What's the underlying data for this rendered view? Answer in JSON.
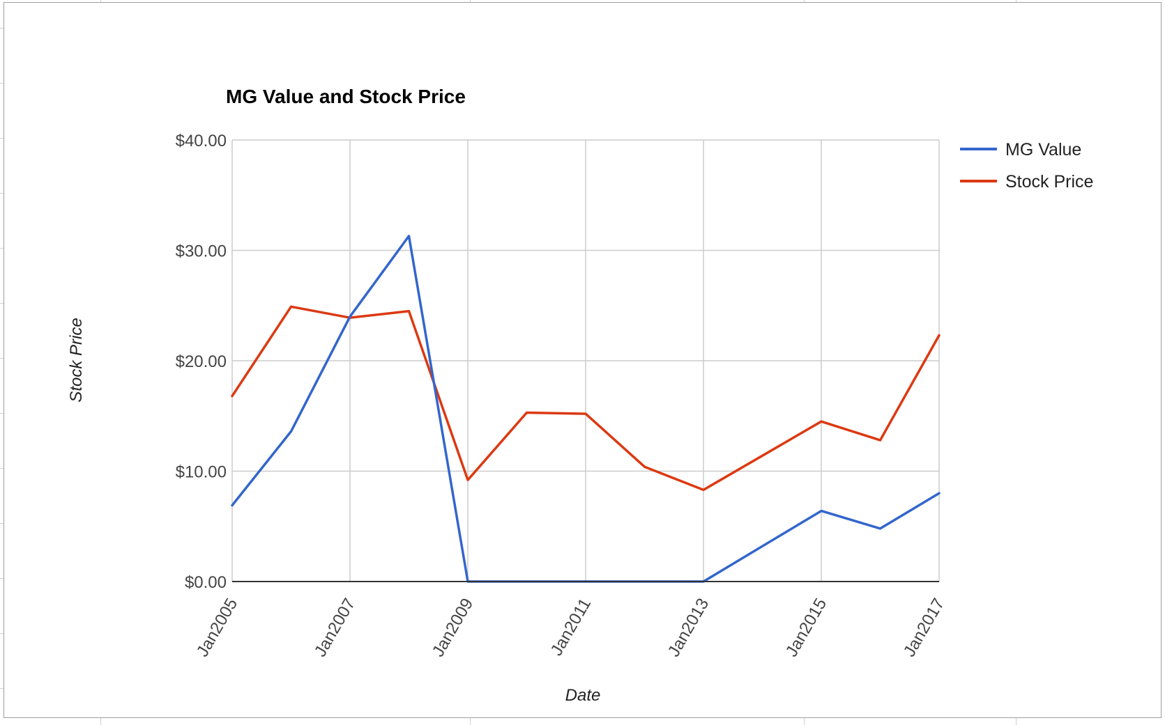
{
  "colors": {
    "mg_value": "#3366cc",
    "stock_price": "#dc3912",
    "gridline": "#cccccc",
    "baseline": "#333333"
  },
  "chart_data": {
    "type": "line",
    "title": "MG Value and Stock Price",
    "xlabel": "Date",
    "ylabel": "Stock Price",
    "x_ticks": [
      "Jan2005",
      "Jan2007",
      "Jan2009",
      "Jan2011",
      "Jan2013",
      "Jan2015",
      "Jan2017"
    ],
    "y_ticks": [
      "$0.00",
      "$10.00",
      "$20.00",
      "$30.00",
      "$40.00"
    ],
    "ylim": [
      0,
      40
    ],
    "xlim": [
      "2005-01",
      "2017-01"
    ],
    "grid": true,
    "legend": "right",
    "series": [
      {
        "name": "MG Value",
        "points": [
          [
            "2005-01",
            6.9
          ],
          [
            "2006-01",
            13.6
          ],
          [
            "2007-01",
            24.0
          ],
          [
            "2008-01",
            31.3
          ],
          [
            "2009-01",
            0.0
          ],
          [
            "2010-01",
            0.0
          ],
          [
            "2011-01",
            0.0
          ],
          [
            "2012-01",
            0.0
          ],
          [
            "2013-01",
            0.0
          ],
          [
            "2014-01",
            3.2
          ],
          [
            "2015-01",
            6.4
          ],
          [
            "2016-01",
            4.8
          ],
          [
            "2017-01",
            8.0
          ]
        ]
      },
      {
        "name": "Stock Price",
        "points": [
          [
            "2005-01",
            16.8
          ],
          [
            "2006-01",
            24.9
          ],
          [
            "2007-01",
            23.9
          ],
          [
            "2008-01",
            24.5
          ],
          [
            "2009-01",
            9.2
          ],
          [
            "2010-01",
            15.3
          ],
          [
            "2011-01",
            15.2
          ],
          [
            "2012-01",
            10.4
          ],
          [
            "2013-01",
            8.3
          ],
          [
            "2014-01",
            11.4
          ],
          [
            "2015-01",
            14.5
          ],
          [
            "2016-01",
            12.8
          ],
          [
            "2017-01",
            22.3
          ]
        ]
      }
    ]
  }
}
